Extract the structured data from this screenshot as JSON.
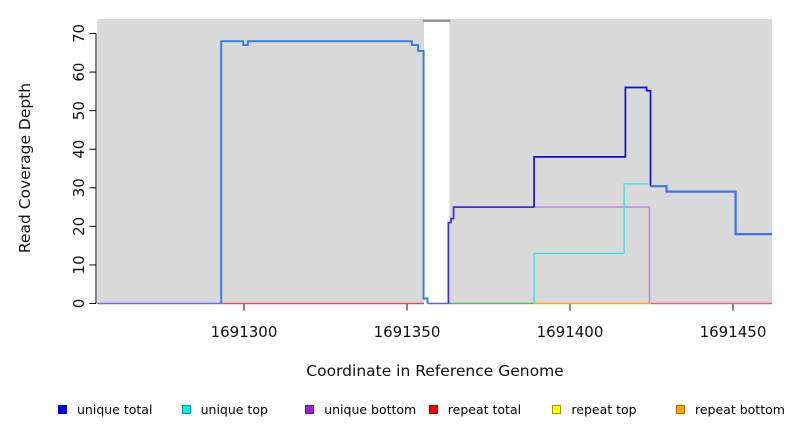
{
  "chart_data": {
    "type": "line",
    "title": "",
    "xlabel": "Coordinate in Reference Genome",
    "ylabel": "Read Coverage Depth",
    "x_range": [
      1691255,
      1691462
    ],
    "y_range": [
      0,
      73.5
    ],
    "x_ticks": [
      {
        "v": 1691300,
        "label": "1691300"
      },
      {
        "v": 1691350,
        "label": "1691350"
      },
      {
        "v": 1691400,
        "label": "1691400"
      },
      {
        "v": 1691450,
        "label": "1691450"
      }
    ],
    "y_ticks": [
      {
        "v": 0,
        "label": "0"
      },
      {
        "v": 10,
        "label": "10"
      },
      {
        "v": 20,
        "label": "20"
      },
      {
        "v": 30,
        "label": "30"
      },
      {
        "v": 40,
        "label": "40"
      },
      {
        "v": 50,
        "label": "50"
      },
      {
        "v": 60,
        "label": "60"
      },
      {
        "v": 70,
        "label": "70"
      }
    ],
    "panel": {
      "bg": "#d9d9d9",
      "gap": {
        "from": 1691355.2,
        "to": 1691363.0,
        "top_bar_color": "#8c8c8c"
      }
    },
    "legend": [
      {
        "label": "unique total",
        "fill": "#0000ee",
        "border": "#0000a0"
      },
      {
        "label": "unique top",
        "fill": "#00eeee",
        "border": "#009999"
      },
      {
        "label": "unique bottom",
        "fill": "#9a1fd6",
        "border": "#6a0dad"
      },
      {
        "label": "repeat total",
        "fill": "#f00000",
        "border": "#990000"
      },
      {
        "label": "repeat top",
        "fill": "#ffff00",
        "border": "#999900"
      },
      {
        "label": "repeat bottom",
        "fill": "#ffa500",
        "border": "#b07000"
      }
    ],
    "series": [
      {
        "name": "baseline-unique-overlap-left",
        "color": "#6f6af2",
        "width": 1.6,
        "points": [
          [
            1691255,
            0
          ],
          [
            1691293,
            0
          ]
        ]
      },
      {
        "name": "baseline-repeat-total",
        "color": "#e14d60",
        "width": 1.4,
        "points": [
          [
            1691293,
            0
          ],
          [
            1691355.2,
            0
          ]
        ]
      },
      {
        "name": "baseline-gap-unique-blend",
        "color": "#6657ea",
        "width": 1.6,
        "points": [
          [
            1691356.3,
            0
          ],
          [
            1691363,
            0
          ]
        ]
      },
      {
        "name": "baseline-top-overlap-green",
        "color": "#5cb85c",
        "width": 1.4,
        "points": [
          [
            1691363,
            0
          ],
          [
            1691389,
            0
          ]
        ]
      },
      {
        "name": "baseline-repeat-bottom",
        "color": "#ffa513",
        "width": 1.6,
        "points": [
          [
            1691389,
            0
          ],
          [
            1691424.8,
            0
          ]
        ]
      },
      {
        "name": "baseline-right-pink",
        "color": "#ec5d96",
        "width": 1.4,
        "points": [
          [
            1691424.8,
            0
          ],
          [
            1691462,
            0
          ]
        ]
      },
      {
        "name": "unique-bottom-line",
        "color": "#bc7ede",
        "width": 1.4,
        "points": [
          [
            1691389,
            25
          ],
          [
            1691424.4,
            25
          ],
          [
            1691424.4,
            0
          ]
        ]
      },
      {
        "name": "unique-top-line",
        "color": "#3fe0ea",
        "width": 1.4,
        "points": [
          [
            1691389,
            0
          ],
          [
            1691389,
            13
          ],
          [
            1691416.6,
            13
          ],
          [
            1691416.6,
            31
          ],
          [
            1691424,
            31
          ]
        ]
      },
      {
        "name": "unique-total-bottom-overlap",
        "color": "#4430d8",
        "width": 1.8,
        "points": [
          [
            1691362.7,
            0
          ],
          [
            1691362.7,
            21
          ],
          [
            1691363.5,
            21
          ],
          [
            1691363.5,
            22
          ],
          [
            1691364.3,
            22
          ],
          [
            1691364.3,
            25
          ],
          [
            1691389,
            25
          ]
        ]
      },
      {
        "name": "unique-total-line",
        "color": "#0d0de0",
        "width": 1.7,
        "points": [
          [
            1691389,
            25
          ],
          [
            1691389,
            38
          ],
          [
            1691417,
            38
          ],
          [
            1691417,
            56
          ],
          [
            1691423.5,
            56
          ],
          [
            1691423.5,
            55.2
          ],
          [
            1691424.7,
            55.2
          ],
          [
            1691424.7,
            30.4
          ]
        ]
      },
      {
        "name": "unique-total-top-overlap-left",
        "color": "#2e7ce8",
        "width": 1.9,
        "points": [
          [
            1691293,
            0
          ],
          [
            1691293,
            68
          ],
          [
            1691299.8,
            68
          ],
          [
            1691299.8,
            67
          ],
          [
            1691301.2,
            67
          ],
          [
            1691301.2,
            68
          ],
          [
            1691351.5,
            68
          ],
          [
            1691351.5,
            67
          ],
          [
            1691353.4,
            67
          ],
          [
            1691353.4,
            65.5
          ],
          [
            1691355.1,
            65.5
          ],
          [
            1691355.1,
            1.3
          ],
          [
            1691356.3,
            1.3
          ],
          [
            1691356.3,
            0
          ]
        ]
      },
      {
        "name": "unique-total-top-overlap-right",
        "color": "#3e72e6",
        "width": 2.2,
        "points": [
          [
            1691424.7,
            30.4
          ],
          [
            1691429.6,
            30.4
          ],
          [
            1691429.6,
            29
          ],
          [
            1691450.8,
            29
          ],
          [
            1691450.8,
            18
          ],
          [
            1691462,
            18
          ]
        ]
      }
    ]
  }
}
